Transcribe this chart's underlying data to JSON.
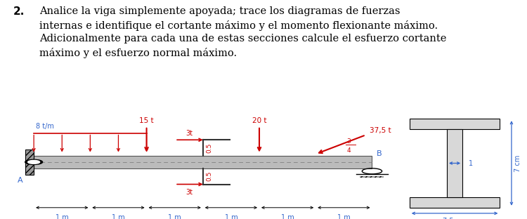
{
  "title_number": "2.",
  "title_text": "Analice la viga simplemente apoyada; trace los diagramas de fuerzas\ninternas e identifique el cortante máximo y el momento flexionante máximo.\nAdicionalmente para cada una de estas secciones calcule el esfuerzo cortante\nmáximo y el esfuerzo normal máximo.",
  "red_color": "#cc0000",
  "blue_color": "#3366cc",
  "dark_color": "#333333",
  "background": "#ffffff",
  "span_labels": [
    "1 m",
    "1 m",
    "1 m",
    "1 m",
    "1 m",
    "1 m"
  ]
}
